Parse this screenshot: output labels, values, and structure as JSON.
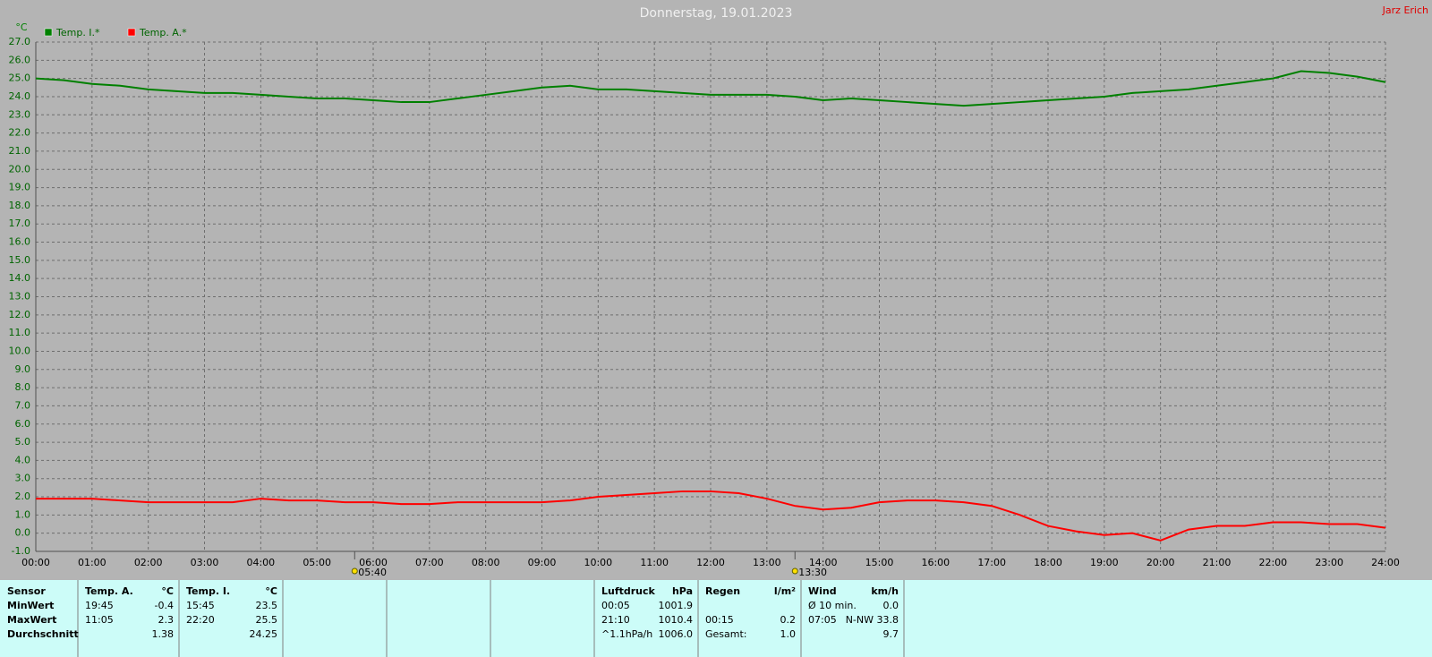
{
  "chart_data": {
    "type": "line",
    "title": "Donnerstag, 19.01.2023",
    "author": "Jarz Erich",
    "y_label": "°C",
    "x": [
      0,
      0.5,
      1,
      1.5,
      2,
      2.5,
      3,
      3.5,
      4,
      4.5,
      5,
      5.5,
      6,
      6.5,
      7,
      7.5,
      8,
      8.5,
      9,
      9.5,
      10,
      10.5,
      11,
      11.5,
      12,
      12.5,
      13,
      13.5,
      14,
      14.5,
      15,
      15.5,
      16,
      16.5,
      17,
      17.5,
      18,
      18.5,
      19,
      19.5,
      20,
      20.5,
      21,
      21.5,
      22,
      22.5,
      23,
      23.5,
      24
    ],
    "series": [
      {
        "name": "Temp. I.*",
        "color": "#008000",
        "values": [
          25.0,
          24.9,
          24.7,
          24.6,
          24.4,
          24.3,
          24.2,
          24.2,
          24.1,
          24.0,
          23.9,
          23.9,
          23.8,
          23.7,
          23.7,
          23.9,
          24.1,
          24.3,
          24.5,
          24.6,
          24.4,
          24.4,
          24.3,
          24.2,
          24.1,
          24.1,
          24.1,
          24.0,
          23.8,
          23.9,
          23.8,
          23.7,
          23.6,
          23.5,
          23.6,
          23.7,
          23.8,
          23.9,
          24.0,
          24.2,
          24.3,
          24.4,
          24.6,
          24.8,
          25.0,
          25.4,
          25.3,
          25.1,
          24.8
        ]
      },
      {
        "name": "Temp. A.*",
        "color": "#ff0000",
        "values": [
          1.9,
          1.9,
          1.9,
          1.8,
          1.7,
          1.7,
          1.7,
          1.7,
          1.9,
          1.8,
          1.8,
          1.7,
          1.7,
          1.6,
          1.6,
          1.7,
          1.7,
          1.7,
          1.7,
          1.8,
          2.0,
          2.1,
          2.2,
          2.3,
          2.3,
          2.2,
          1.9,
          1.5,
          1.3,
          1.4,
          1.7,
          1.8,
          1.8,
          1.7,
          1.5,
          1.0,
          0.4,
          0.1,
          -0.1,
          0.0,
          -0.4,
          0.2,
          0.4,
          0.4,
          0.6,
          0.6,
          0.5,
          0.5,
          0.3
        ]
      }
    ],
    "xlim": [
      0,
      24
    ],
    "ylim": [
      -1,
      27
    ],
    "xticks": [
      {
        "value": 0,
        "label": "00:00"
      },
      {
        "value": 1,
        "label": "01:00"
      },
      {
        "value": 2,
        "label": "02:00"
      },
      {
        "value": 3,
        "label": "03:00"
      },
      {
        "value": 4,
        "label": "04:00"
      },
      {
        "value": 5,
        "label": "05:00"
      },
      {
        "value": 6,
        "label": "06:00"
      },
      {
        "value": 7,
        "label": "07:00"
      },
      {
        "value": 8,
        "label": "08:00"
      },
      {
        "value": 9,
        "label": "09:00"
      },
      {
        "value": 10,
        "label": "10:00"
      },
      {
        "value": 11,
        "label": "11:00"
      },
      {
        "value": 12,
        "label": "12:00"
      },
      {
        "value": 13,
        "label": "13:00"
      },
      {
        "value": 14,
        "label": "14:00"
      },
      {
        "value": 15,
        "label": "15:00"
      },
      {
        "value": 16,
        "label": "16:00"
      },
      {
        "value": 17,
        "label": "17:00"
      },
      {
        "value": 18,
        "label": "18:00"
      },
      {
        "value": 19,
        "label": "19:00"
      },
      {
        "value": 20,
        "label": "20:00"
      },
      {
        "value": 21,
        "label": "21:00"
      },
      {
        "value": 22,
        "label": "22:00"
      },
      {
        "value": 23,
        "label": "23:00"
      },
      {
        "value": 24,
        "label": "24:00"
      }
    ],
    "yticks": [
      {
        "value": -1,
        "label": "-1.0"
      },
      {
        "value": 0,
        "label": "0.0"
      },
      {
        "value": 1,
        "label": "1.0"
      },
      {
        "value": 2,
        "label": "2.0"
      },
      {
        "value": 3,
        "label": "3.0"
      },
      {
        "value": 4,
        "label": "4.0"
      },
      {
        "value": 5,
        "label": "5.0"
      },
      {
        "value": 6,
        "label": "6.0"
      },
      {
        "value": 7,
        "label": "7.0"
      },
      {
        "value": 8,
        "label": "8.0"
      },
      {
        "value": 9,
        "label": "9.0"
      },
      {
        "value": 10,
        "label": "10.0"
      },
      {
        "value": 11,
        "label": "11.0"
      },
      {
        "value": 12,
        "label": "12.0"
      },
      {
        "value": 13,
        "label": "13.0"
      },
      {
        "value": 14,
        "label": "14.0"
      },
      {
        "value": 15,
        "label": "15.0"
      },
      {
        "value": 16,
        "label": "16.0"
      },
      {
        "value": 17,
        "label": "17.0"
      },
      {
        "value": 18,
        "label": "18.0"
      },
      {
        "value": 19,
        "label": "19.0"
      },
      {
        "value": 20,
        "label": "20.0"
      },
      {
        "value": 21,
        "label": "21.0"
      },
      {
        "value": 22,
        "label": "22.0"
      },
      {
        "value": 23,
        "label": "23.0"
      },
      {
        "value": 24,
        "label": "24.0"
      },
      {
        "value": 25,
        "label": "25.0"
      },
      {
        "value": 26,
        "label": "26.0"
      },
      {
        "value": 27,
        "label": "27.0"
      }
    ],
    "grid": true,
    "sun_markers": [
      {
        "value": 5.67,
        "label": "05:40"
      },
      {
        "value": 13.5,
        "label": "13:30"
      }
    ]
  },
  "stats": {
    "header": [
      {
        "left": "Sensor"
      },
      {
        "left": "Temp. A.",
        "right": "°C"
      },
      {
        "left": "Temp. I.",
        "right": "°C"
      },
      {
        "left": "Luftdruck",
        "right": "hPa"
      },
      {
        "left": "Regen",
        "right": "l/m²"
      },
      {
        "left": "Wind",
        "right": "km/h"
      }
    ],
    "rows": [
      [
        {
          "left": "MinWert"
        },
        {
          "left": "19:45",
          "right": "-0.4"
        },
        {
          "left": "15:45",
          "right": "23.5"
        },
        {
          "left": "00:05",
          "right": "1001.9"
        },
        {},
        {
          "left": "Ø 10 min.",
          "right": "0.0"
        }
      ],
      [
        {
          "left": "MaxWert"
        },
        {
          "left": "11:05",
          "right": "2.3"
        },
        {
          "left": "22:20",
          "right": "25.5"
        },
        {
          "left": "21:10",
          "right": "1010.4"
        },
        {
          "left": "00:15",
          "right": "0.2"
        },
        {
          "left": "07:05",
          "right": "N-NW 33.8"
        }
      ],
      [
        {
          "left": "Durchschnitt"
        },
        {
          "right": "1.38"
        },
        {
          "right": "24.25"
        },
        {
          "left": "^1.1hPa/h",
          "right": "1006.0"
        },
        {
          "left": "Gesamt:",
          "right": "1.0"
        },
        {
          "right": "9.7"
        }
      ]
    ]
  }
}
